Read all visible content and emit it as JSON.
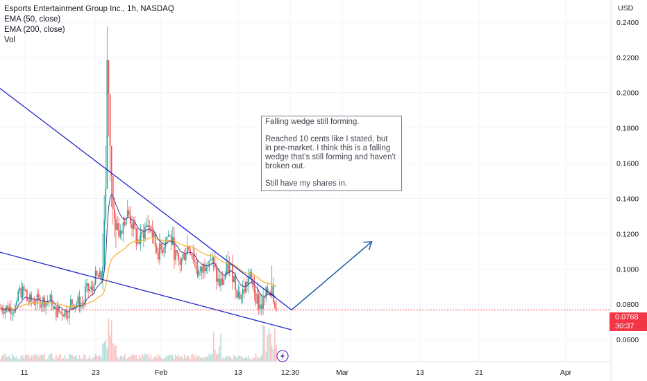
{
  "legend": {
    "title": "Esports Entertainment Group Inc., 1h, NASDAQ",
    "ema50": "EMA (50, close)",
    "ema200": "EMA (200, close)",
    "vol": "Vol"
  },
  "note": {
    "line1": "Falling wedge still forming.",
    "line2": "Reached 10 cents like I stated, but in pre-market. I think this is a falling wedge that's still forming and haven't broken out.",
    "line3": "Still have my shares in."
  },
  "price_tag": {
    "price": "0.0768",
    "countdown": "30:37"
  },
  "axis": {
    "currency": "USD"
  },
  "colors": {
    "up": "#26a69a",
    "down": "#ef5350",
    "ema50": "#4a3b8f",
    "ema200": "#f5b731",
    "trendline": "#1e22c8",
    "arrow": "#2962a6",
    "price_line": "#f23645"
  },
  "chart_data": {
    "type": "candlestick",
    "ylim": [
      0.0475,
      0.2525
    ],
    "yticks": [
      0.06,
      0.08,
      0.1,
      0.12,
      0.14,
      0.16,
      0.18,
      0.2,
      0.22,
      0.24
    ],
    "ytick_labels": [
      "0.0600",
      "0.0800",
      "0.1000",
      "0.1200",
      "0.1400",
      "0.1600",
      "0.1800",
      "0.2000",
      "0.2200",
      "0.2400"
    ],
    "xticks": [
      "11",
      "23",
      "Feb",
      "13",
      "12:30",
      "Mar",
      "13",
      "21",
      "Apr"
    ],
    "last_price": 0.0768,
    "trendlines": [
      {
        "name": "upper",
        "points": [
          [
            -40,
            0.2275
          ],
          [
            200,
            0.0768
          ]
        ]
      },
      {
        "name": "lower",
        "points": [
          [
            -100,
            0.1315
          ],
          [
            200,
            0.0655
          ]
        ]
      }
    ],
    "projection_arrow": {
      "points": [
        [
          200,
          0.0768
        ],
        [
          255,
          0.1155
        ]
      ]
    },
    "pump": {
      "highs": [
        0.12,
        0.142,
        0.17,
        0.2375,
        0.215,
        0.19,
        0.16,
        0.148,
        0.14,
        0.132
      ],
      "lows": [
        0.088,
        0.1,
        0.125,
        0.16,
        0.175,
        0.15,
        0.135,
        0.125,
        0.118,
        0.112
      ]
    }
  }
}
